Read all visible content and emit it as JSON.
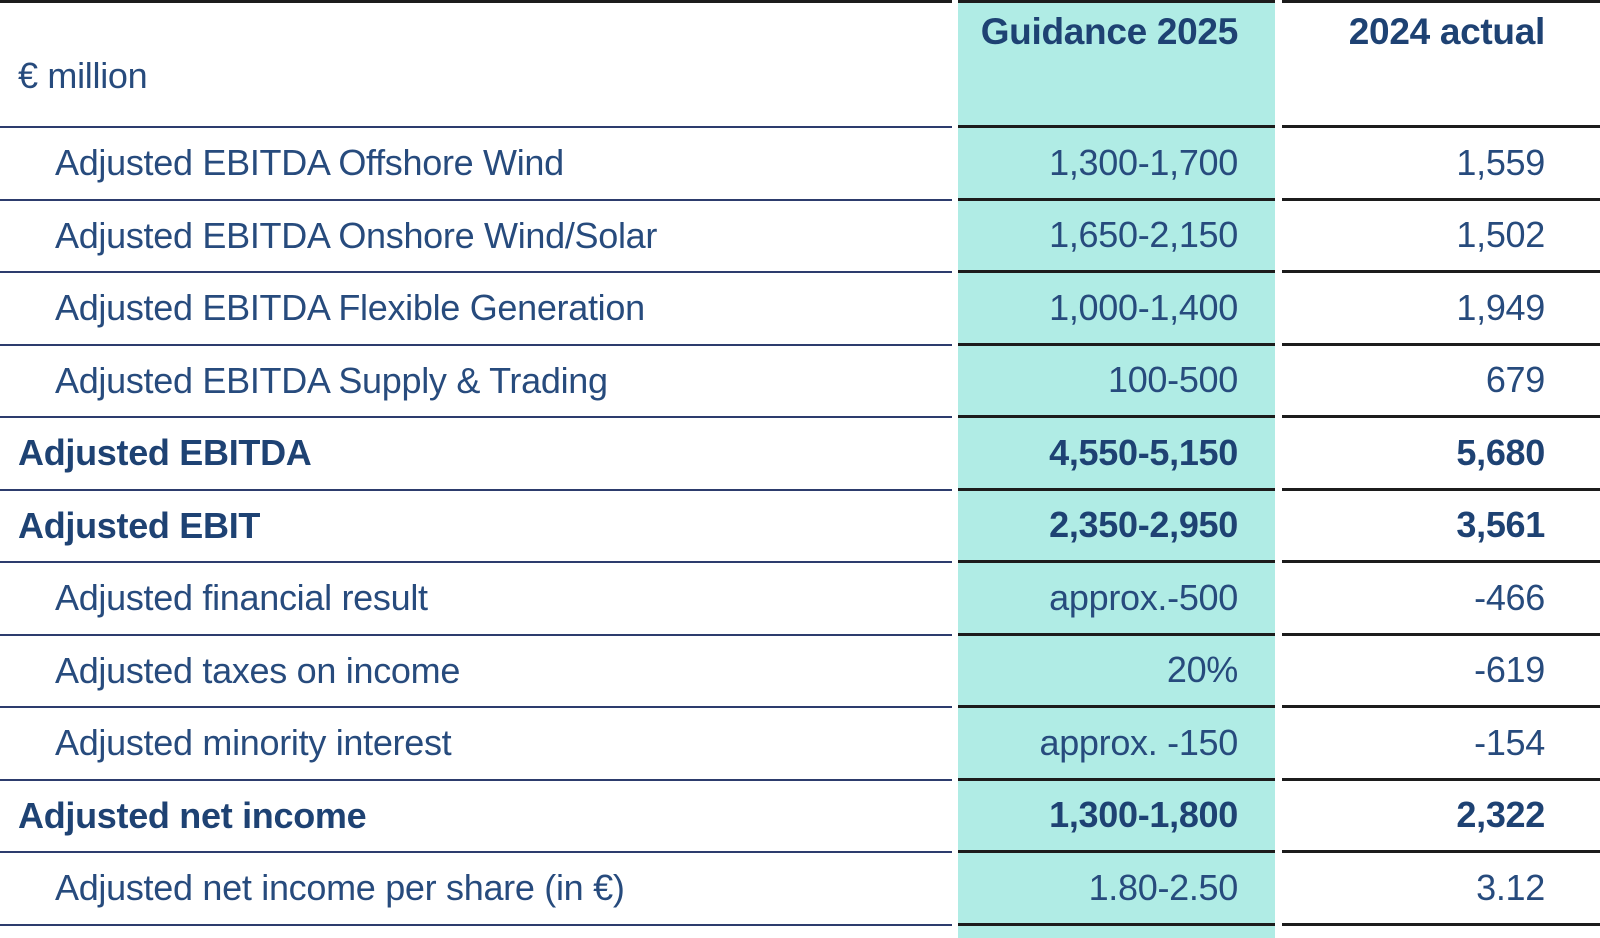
{
  "table": {
    "unit_label": "€ million",
    "columns": [
      {
        "label": "Guidance 2025",
        "highlighted": true
      },
      {
        "label": "2024 actual",
        "highlighted": false
      }
    ],
    "rows": [
      {
        "label": "Adjusted EBITDA Offshore Wind",
        "guidance": "1,300-1,700",
        "actual": "1,559",
        "bold": false
      },
      {
        "label": "Adjusted EBITDA Onshore Wind/Solar",
        "guidance": "1,650-2,150",
        "actual": "1,502",
        "bold": false
      },
      {
        "label": "Adjusted EBITDA Flexible Generation",
        "guidance": "1,000-1,400",
        "actual": "1,949",
        "bold": false
      },
      {
        "label": "Adjusted EBITDA Supply & Trading",
        "guidance": "100-500",
        "actual": "679",
        "bold": false
      },
      {
        "label": "Adjusted EBITDA",
        "guidance": "4,550-5,150",
        "actual": "5,680",
        "bold": true
      },
      {
        "label": "Adjusted EBIT",
        "guidance": "2,350-2,950",
        "actual": "3,561",
        "bold": true
      },
      {
        "label": "Adjusted financial result",
        "guidance": "approx.-500",
        "actual": "-466",
        "bold": false
      },
      {
        "label": "Adjusted taxes on income",
        "guidance": "20%",
        "actual": "-619",
        "bold": false
      },
      {
        "label": "Adjusted minority interest",
        "guidance": "approx. -150",
        "actual": "-154",
        "bold": false
      },
      {
        "label": "Adjusted net income",
        "guidance": "1,300-1,800",
        "actual": "2,322",
        "bold": true
      },
      {
        "label": "Adjusted net income per share (in €)",
        "guidance": "1.80-2.50",
        "actual": "3.12",
        "bold": false
      }
    ],
    "colors": {
      "highlight": "#b0ece5",
      "text": "#274b7d",
      "bold_text": "#1e4273",
      "label_border": "#2d3c6d",
      "value_border": "#1c1c1c",
      "background": "#ffffff"
    }
  }
}
